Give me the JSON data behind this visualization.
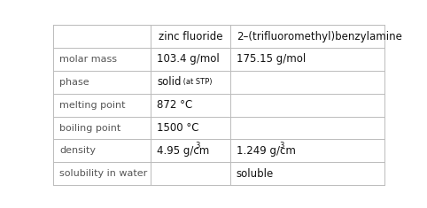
{
  "col_headers": [
    "",
    "zinc fluoride",
    "2–(trifluoromethyl)benzylamine"
  ],
  "rows": [
    {
      "label": "molar mass",
      "col1": "103.4 g/mol",
      "col1_sup": null,
      "col2": "175.15 g/mol",
      "col2_sup": null
    },
    {
      "label": "phase",
      "col1_main": "solid",
      "col1_small": " (at STP)",
      "col2": ""
    },
    {
      "label": "melting point",
      "col1": "872 °C",
      "col1_sup": null,
      "col2": "",
      "col2_sup": null
    },
    {
      "label": "boiling point",
      "col1": "1500 °C",
      "col1_sup": null,
      "col2": "",
      "col2_sup": null
    },
    {
      "label": "density",
      "col1": "4.95 g/cm",
      "col1_sup": "3",
      "col2": "1.249 g/cm",
      "col2_sup": "3"
    },
    {
      "label": "solubility in water",
      "col1": "",
      "col1_sup": null,
      "col2": "soluble",
      "col2_sup": null
    }
  ],
  "background_color": "#ffffff",
  "line_color": "#bbbbbb",
  "label_color": "#555555",
  "value_color": "#111111",
  "header_color": "#111111",
  "col_boundaries": [
    0.0,
    0.295,
    0.535,
    1.0
  ],
  "fig_width": 4.82,
  "fig_height": 2.35,
  "dpi": 100,
  "label_fontsize": 8.0,
  "value_fontsize": 8.5,
  "header_fontsize": 8.5,
  "small_fontsize": 6.0
}
